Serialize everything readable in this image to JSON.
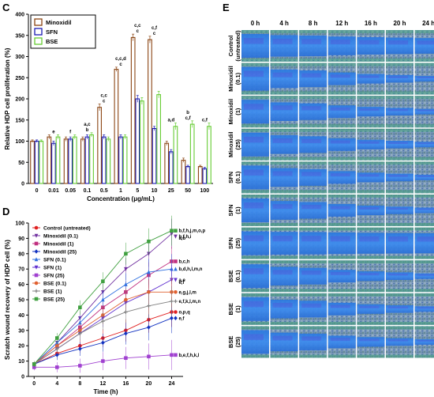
{
  "chart_data": [
    {
      "panel": "C",
      "type": "bar",
      "categories": [
        "0",
        "0.01",
        "0.05",
        "0.1",
        "0.5",
        "1",
        "5",
        "10",
        "25",
        "50",
        "100"
      ],
      "xlabel": "Concentration (μg/mL)",
      "ylabel": "Relative HDP cell proliferation (%)",
      "ylim": [
        0,
        400
      ],
      "yticks": [
        0,
        50,
        100,
        150,
        200,
        250,
        300,
        350,
        400
      ],
      "legend_position": "top-left",
      "series": [
        {
          "name": "Minoxidil",
          "color": "#8B4513",
          "values": [
            100,
            110,
            105,
            105,
            180,
            270,
            345,
            340,
            95,
            55,
            40
          ],
          "errors": [
            3,
            5,
            5,
            5,
            8,
            5,
            8,
            8,
            5,
            5,
            3
          ]
        },
        {
          "name": "SFN",
          "color": "#1a1ab3",
          "values": [
            100,
            95,
            105,
            110,
            110,
            110,
            200,
            130,
            75,
            40,
            35
          ],
          "errors": [
            3,
            5,
            5,
            5,
            5,
            5,
            8,
            5,
            5,
            3,
            3
          ]
        },
        {
          "name": "BSE",
          "color": "#66cc33",
          "values": [
            100,
            110,
            110,
            115,
            105,
            110,
            195,
            210,
            135,
            140,
            135
          ],
          "errors": [
            3,
            5,
            5,
            5,
            5,
            5,
            8,
            8,
            8,
            8,
            8
          ]
        }
      ],
      "annotations": [
        {
          "category": "0.01",
          "text": "e"
        },
        {
          "category": "0.05",
          "text": "f"
        },
        {
          "category": "0.1",
          "text": "b"
        },
        {
          "category": "0.1",
          "text": "a,c"
        },
        {
          "category": "0.5",
          "text": "c"
        },
        {
          "category": "0.5",
          "text": "c,c"
        },
        {
          "category": "1",
          "text": "c"
        },
        {
          "category": "1",
          "text": "c,c,d"
        },
        {
          "category": "5",
          "text": "c"
        },
        {
          "category": "5",
          "text": "c,c"
        },
        {
          "category": "10",
          "text": "c"
        },
        {
          "category": "10",
          "text": "c,f"
        },
        {
          "category": "25",
          "text": "a,d"
        },
        {
          "category": "50",
          "text": "c,f"
        },
        {
          "category": "50",
          "text": "b"
        },
        {
          "category": "100",
          "text": "c,f"
        }
      ]
    },
    {
      "panel": "D",
      "type": "line",
      "x": [
        0,
        4,
        8,
        12,
        16,
        20,
        24
      ],
      "xlabel": "Time (h)",
      "ylabel": "Scratch wound recovery of HDP cell (%)",
      "ylim": [
        0,
        100
      ],
      "yticks": [
        0,
        10,
        20,
        30,
        40,
        50,
        60,
        70,
        80,
        90,
        100
      ],
      "legend_position": "top-left",
      "series": [
        {
          "name": "Control (untreated)",
          "color": "#e02020",
          "marker": "circle",
          "values": [
            8,
            15,
            20,
            25,
            30,
            37,
            42
          ],
          "label": "o,p,q"
        },
        {
          "name": "Minoxidil (0.1)",
          "color": "#7030a0",
          "marker": "triangle-down",
          "values": [
            8,
            22,
            38,
            55,
            70,
            80,
            93
          ],
          "label": "b,f,h,i"
        },
        {
          "name": "Minoxidil (1)",
          "color": "#c03080",
          "marker": "square",
          "values": [
            8,
            20,
            32,
            45,
            55,
            66,
            75
          ],
          "label": "b,c,h"
        },
        {
          "name": "Minoxidil (25)",
          "color": "#1030c0",
          "marker": "diamond",
          "values": [
            8,
            14,
            18,
            22,
            28,
            32,
            38
          ],
          "label": "e,f"
        },
        {
          "name": "SFN (0.1)",
          "color": "#3070e0",
          "marker": "triangle",
          "values": [
            8,
            22,
            35,
            50,
            60,
            68,
            70
          ],
          "label": "b,d,h,l,m,n"
        },
        {
          "name": "SFN (1)",
          "color": "#6030d0",
          "marker": "triangle-down",
          "values": [
            8,
            18,
            28,
            38,
            48,
            55,
            63
          ],
          "label": "a,e"
        },
        {
          "name": "SFN (25)",
          "color": "#a040d0",
          "marker": "square",
          "values": [
            6,
            6,
            7,
            10,
            12,
            13,
            14
          ],
          "label": "b,e,f,h,k,l"
        },
        {
          "name": "BSE (0.1)",
          "color": "#e06030",
          "marker": "circle",
          "values": [
            8,
            20,
            30,
            40,
            50,
            55,
            55
          ],
          "label": "e,g,j,l,m"
        },
        {
          "name": "BSE (1)",
          "color": "#808080",
          "marker": "cross",
          "values": [
            8,
            18,
            28,
            36,
            42,
            46,
            49
          ],
          "label": "e,f,k,l,m,n"
        },
        {
          "name": "BSE (25)",
          "color": "#40a040",
          "marker": "square",
          "values": [
            8,
            25,
            45,
            62,
            80,
            88,
            95
          ],
          "label": "b,f,h,j,m,o,p"
        }
      ],
      "extra_labels": [
        "a,b",
        "e,f"
      ]
    },
    {
      "panel": "E",
      "type": "table",
      "columns": [
        "0 h",
        "4 h",
        "8 h",
        "12 h",
        "16 h",
        "20 h",
        "24 h"
      ],
      "rows": [
        "Control (untreated)",
        "Minoxidil (0.1)",
        "Minoxidil (1)",
        "Minoxidil (25)",
        "SFN (0.1)",
        "SFN (1)",
        "SFN (25)",
        "BSE (0.1)",
        "BSE (1)",
        "BSE (25)"
      ],
      "row_lines": [
        [
          "Control",
          "(untreated)"
        ],
        [
          "Minoxidil",
          "(0.1)"
        ],
        [
          "Minoxidil",
          "(1)"
        ],
        [
          "Minoxidil",
          "(25)"
        ],
        [
          "SFN",
          "(0.1)"
        ],
        [
          "SFN",
          "(1)"
        ],
        [
          "SFN",
          "(25)"
        ],
        [
          "BSE",
          "(0.1)"
        ],
        [
          "BSE",
          "(1)"
        ],
        [
          "BSE",
          "(25)"
        ]
      ]
    }
  ],
  "panel_letters": {
    "c": "C",
    "d": "D",
    "e": "E"
  }
}
